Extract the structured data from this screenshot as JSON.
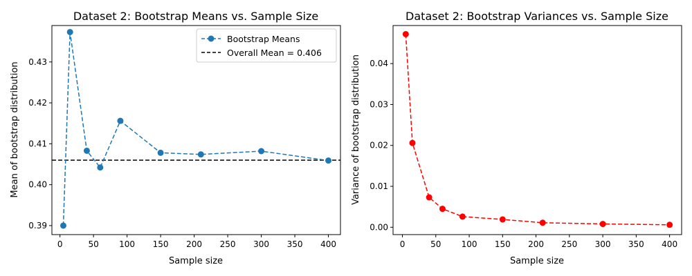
{
  "chart_data": [
    {
      "type": "line",
      "title": "Dataset 2: Bootstrap Means vs. Sample Size",
      "xlabel": "Sample size",
      "ylabel": "Mean of bootstrap distribution",
      "xlim": [
        -12,
        418
      ],
      "ylim": [
        0.3878,
        0.4389
      ],
      "xticks": [
        0,
        50,
        100,
        150,
        200,
        250,
        300,
        350,
        400
      ],
      "yticks": [
        0.39,
        0.4,
        0.41,
        0.42,
        0.43
      ],
      "ytick_labels": [
        "0.39",
        "0.40",
        "0.41",
        "0.42",
        "0.43"
      ],
      "x": [
        5,
        15,
        40,
        60,
        90,
        150,
        210,
        300,
        400
      ],
      "series": [
        {
          "name": "Bootstrap Means",
          "values": [
            0.39,
            0.4373,
            0.4083,
            0.4042,
            0.4156,
            0.4078,
            0.4074,
            0.4082,
            0.4059
          ],
          "color": "#1f77b4",
          "linestyle": "dashed",
          "marker": "circle"
        }
      ],
      "reference_line": {
        "name": "Overall Mean = 0.406",
        "y": 0.406,
        "color": "#000000"
      },
      "legend_position": "top-right",
      "grid": false
    },
    {
      "type": "line",
      "title": "Dataset 2: Bootstrap Variances vs. Sample Size",
      "xlabel": "Sample size",
      "ylabel": "Variance of bootstrap distribution",
      "xlim": [
        -14,
        418
      ],
      "ylim": [
        -0.0018,
        0.0493
      ],
      "xticks": [
        0,
        50,
        100,
        150,
        200,
        250,
        300,
        350,
        400
      ],
      "yticks": [
        0.0,
        0.01,
        0.02,
        0.03,
        0.04
      ],
      "ytick_labels": [
        "0.00",
        "0.01",
        "0.02",
        "0.03",
        "0.04"
      ],
      "x": [
        5,
        15,
        40,
        60,
        90,
        150,
        210,
        300,
        400
      ],
      "series": [
        {
          "values": [
            0.0472,
            0.0206,
            0.0073,
            0.0045,
            0.0026,
            0.0019,
            0.0011,
            0.0008,
            0.0006
          ],
          "color": "#ff0000",
          "linestyle": "dashed",
          "marker": "circle"
        }
      ],
      "grid": false
    }
  ]
}
